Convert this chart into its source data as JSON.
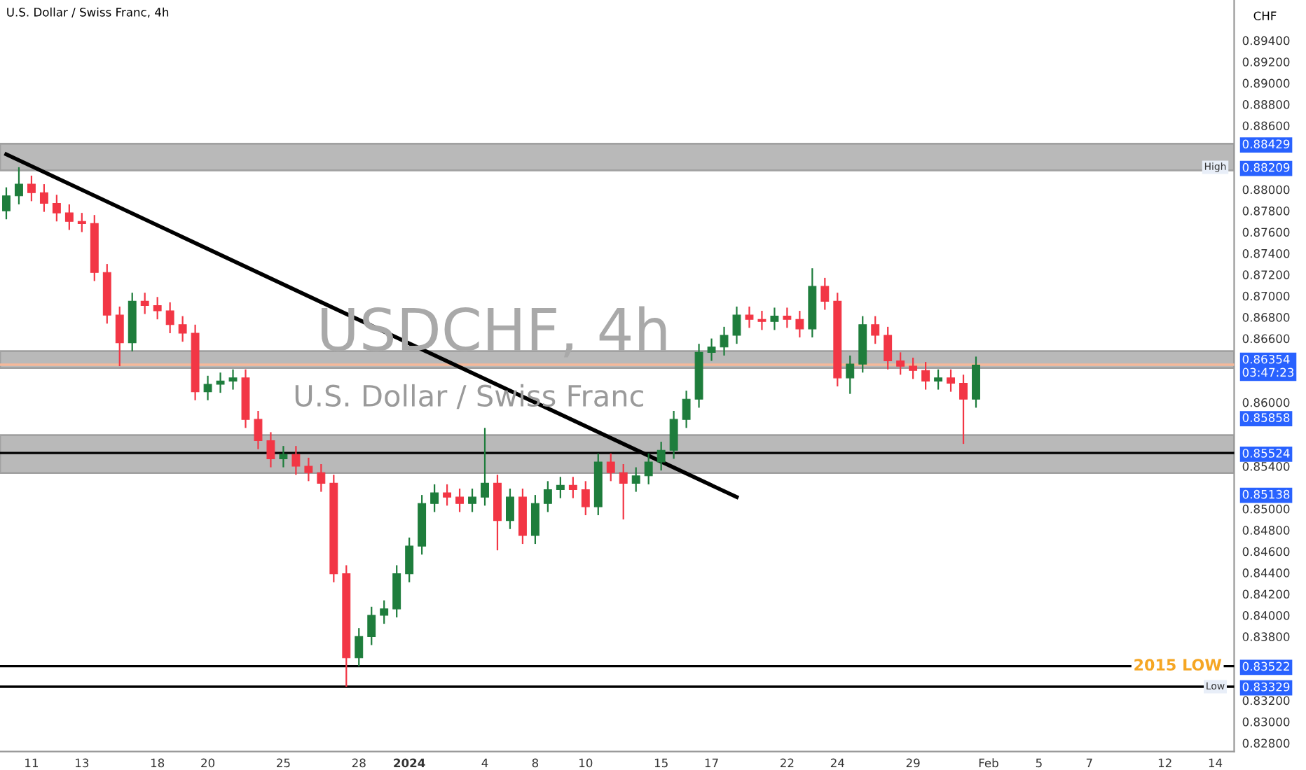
{
  "chart_data": {
    "type": "candlestick",
    "title": "U.S. Dollar / Swiss Franc, 4h",
    "ylabel": "CHF",
    "categories": [
      null,
      null,
      "11",
      null,
      null,
      null,
      "13",
      null,
      null,
      null,
      null,
      null,
      "18",
      null,
      null,
      null,
      "20",
      null,
      null,
      null,
      null,
      null,
      "25",
      null,
      null,
      null,
      null,
      null,
      "28",
      null,
      null,
      null,
      "2024",
      null,
      null,
      null,
      null,
      null,
      "4",
      null,
      null,
      null,
      "8",
      null,
      null,
      null,
      "10",
      null,
      null,
      null,
      null,
      null,
      "15",
      null,
      null,
      null,
      "17",
      null,
      null,
      null,
      null,
      null,
      "22",
      null,
      null,
      null,
      "24",
      null,
      null,
      null,
      null,
      null,
      "29",
      null,
      null,
      null,
      null,
      null,
      "Feb",
      null,
      null,
      null,
      "5",
      null,
      null,
      null,
      "7",
      null,
      null,
      null,
      null,
      null,
      "12",
      null,
      null,
      null,
      "14",
      null
    ],
    "ohlc": [
      [
        0.878,
        0.8802,
        0.8772,
        0.8794
      ],
      [
        0.8794,
        0.88209,
        0.8786,
        0.8805
      ],
      [
        0.8805,
        0.8813,
        0.8789,
        0.8797
      ],
      [
        0.8797,
        0.8805,
        0.8779,
        0.8787
      ],
      [
        0.8787,
        0.8795,
        0.877,
        0.8778
      ],
      [
        0.8778,
        0.8786,
        0.8762,
        0.877
      ],
      [
        0.877,
        0.8778,
        0.876,
        0.8768
      ],
      [
        0.8768,
        0.8776,
        0.8714,
        0.8722
      ],
      [
        0.8722,
        0.873,
        0.8674,
        0.8682
      ],
      [
        0.8682,
        0.869,
        0.8634,
        0.8656
      ],
      [
        0.8656,
        0.8703,
        0.8648,
        0.8695
      ],
      [
        0.8695,
        0.8703,
        0.8683,
        0.8691
      ],
      [
        0.8691,
        0.8699,
        0.8678,
        0.8686
      ],
      [
        0.8686,
        0.8694,
        0.8665,
        0.8673
      ],
      [
        0.8673,
        0.8681,
        0.8657,
        0.8665
      ],
      [
        0.8665,
        0.8673,
        0.8602,
        0.861
      ],
      [
        0.861,
        0.8625,
        0.8602,
        0.8617
      ],
      [
        0.8617,
        0.8628,
        0.8609,
        0.862
      ],
      [
        0.862,
        0.8631,
        0.8612,
        0.8623
      ],
      [
        0.8623,
        0.8631,
        0.8576,
        0.8584
      ],
      [
        0.8584,
        0.8592,
        0.8556,
        0.8564
      ],
      [
        0.8564,
        0.8572,
        0.8539,
        0.8547
      ],
      [
        0.8547,
        0.8559,
        0.8539,
        0.8551
      ],
      [
        0.8551,
        0.8559,
        0.8532,
        0.854
      ],
      [
        0.854,
        0.8548,
        0.8526,
        0.8534
      ],
      [
        0.8534,
        0.8542,
        0.8516,
        0.8524
      ],
      [
        0.8524,
        0.8532,
        0.8431,
        0.8439
      ],
      [
        0.8439,
        0.8447,
        0.83329,
        0.836
      ],
      [
        0.836,
        0.8388,
        0.8352,
        0.838
      ],
      [
        0.838,
        0.8408,
        0.8372,
        0.84
      ],
      [
        0.84,
        0.8414,
        0.8392,
        0.8406
      ],
      [
        0.8406,
        0.8447,
        0.8398,
        0.8439
      ],
      [
        0.8439,
        0.8473,
        0.8431,
        0.8465
      ],
      [
        0.8465,
        0.8513,
        0.8457,
        0.8505
      ],
      [
        0.8505,
        0.8523,
        0.8497,
        0.8515
      ],
      [
        0.8515,
        0.8523,
        0.8503,
        0.8511
      ],
      [
        0.8511,
        0.8519,
        0.8497,
        0.8505
      ],
      [
        0.8505,
        0.8519,
        0.8497,
        0.8511
      ],
      [
        0.8511,
        0.8576,
        0.8503,
        0.8524
      ],
      [
        0.8524,
        0.8532,
        0.8461,
        0.8489
      ],
      [
        0.8489,
        0.8519,
        0.8481,
        0.8511
      ],
      [
        0.8511,
        0.8519,
        0.8467,
        0.8475
      ],
      [
        0.8475,
        0.8513,
        0.8467,
        0.8505
      ],
      [
        0.8505,
        0.8526,
        0.8497,
        0.8518
      ],
      [
        0.8518,
        0.853,
        0.851,
        0.8522
      ],
      [
        0.8522,
        0.853,
        0.851,
        0.8518
      ],
      [
        0.8518,
        0.8526,
        0.8494,
        0.8502
      ],
      [
        0.8502,
        0.8552,
        0.8494,
        0.8544
      ],
      [
        0.8544,
        0.8552,
        0.8526,
        0.8534
      ],
      [
        0.8534,
        0.8542,
        0.849,
        0.8524
      ],
      [
        0.8524,
        0.8539,
        0.8516,
        0.8531
      ],
      [
        0.8531,
        0.8552,
        0.8523,
        0.8544
      ],
      [
        0.8544,
        0.8563,
        0.8536,
        0.8555
      ],
      [
        0.8555,
        0.8592,
        0.8547,
        0.8584
      ],
      [
        0.8584,
        0.8611,
        0.8576,
        0.8603
      ],
      [
        0.8603,
        0.8655,
        0.8595,
        0.8647
      ],
      [
        0.8647,
        0.866,
        0.8639,
        0.8652
      ],
      [
        0.8652,
        0.8671,
        0.8644,
        0.8663
      ],
      [
        0.8663,
        0.869,
        0.8655,
        0.8682
      ],
      [
        0.8682,
        0.869,
        0.867,
        0.8678
      ],
      [
        0.8678,
        0.8686,
        0.8668,
        0.8676
      ],
      [
        0.8676,
        0.8689,
        0.8668,
        0.8681
      ],
      [
        0.8681,
        0.8689,
        0.867,
        0.8678
      ],
      [
        0.8678,
        0.8686,
        0.8661,
        0.8669
      ],
      [
        0.8669,
        0.8726,
        0.8661,
        0.8709
      ],
      [
        0.8709,
        0.8717,
        0.8687,
        0.8695
      ],
      [
        0.8695,
        0.8703,
        0.8615,
        0.8623
      ],
      [
        0.8623,
        0.8644,
        0.8608,
        0.8636
      ],
      [
        0.8636,
        0.8681,
        0.8628,
        0.8673
      ],
      [
        0.8673,
        0.8681,
        0.8655,
        0.8663
      ],
      [
        0.8663,
        0.8671,
        0.8631,
        0.8639
      ],
      [
        0.8639,
        0.8647,
        0.8626,
        0.8634
      ],
      [
        0.8634,
        0.8642,
        0.8622,
        0.863
      ],
      [
        0.863,
        0.8638,
        0.8612,
        0.862
      ],
      [
        0.862,
        0.8631,
        0.8612,
        0.8623
      ],
      [
        0.8623,
        0.8631,
        0.861,
        0.8618
      ],
      [
        0.8618,
        0.8626,
        0.8561,
        0.8603
      ],
      [
        0.8603,
        0.8643,
        0.8595,
        0.8635
      ],
      null,
      null,
      null,
      null,
      null,
      null,
      null,
      null,
      null,
      null,
      null,
      null,
      null,
      null,
      null,
      null,
      null,
      null,
      null,
      null
    ],
    "series": [
      {
        "type": "line",
        "color": "#000000",
        "values": [
          0.8833,
          null,
          null,
          null,
          null,
          null,
          null,
          null,
          null,
          null,
          null,
          null,
          null,
          null,
          null,
          null,
          null,
          null,
          null,
          null,
          null,
          null,
          null,
          null,
          null,
          null,
          null,
          null,
          null,
          null,
          null,
          null,
          null,
          null,
          null,
          null,
          null,
          null,
          null,
          null,
          null,
          null,
          null,
          null,
          null,
          null,
          null,
          null,
          null,
          null,
          null,
          null,
          null,
          null,
          null,
          null,
          null,
          null,
          0.8511,
          null,
          null,
          null,
          null,
          null,
          null,
          null,
          null,
          null,
          null,
          null,
          null,
          null,
          null,
          null,
          null,
          null,
          null,
          null,
          null,
          null,
          null,
          null,
          null,
          null,
          null,
          null,
          null,
          null,
          null,
          null,
          null,
          null,
          null,
          null,
          null,
          null,
          null,
          null
        ]
      }
    ],
    "ylim": [
      0.8272,
      0.8978
    ],
    "yticks": [
      {
        "value": 0.828,
        "label": "0.82800"
      },
      {
        "value": 0.83,
        "label": "0.83000"
      },
      {
        "value": 0.832,
        "label": "0.83200"
      },
      {
        "value": 0.83329,
        "label": "0.83329"
      },
      {
        "value": 0.83522,
        "label": "0.83522"
      },
      {
        "value": 0.838,
        "label": "0.83800"
      },
      {
        "value": 0.84,
        "label": "0.84000"
      },
      {
        "value": 0.842,
        "label": "0.84200"
      },
      {
        "value": 0.844,
        "label": "0.84400"
      },
      {
        "value": 0.846,
        "label": "0.84600"
      },
      {
        "value": 0.848,
        "label": "0.84800"
      },
      {
        "value": 0.85,
        "label": "0.85000"
      },
      {
        "value": 0.85138,
        "label": "0.85138"
      },
      {
        "value": 0.854,
        "label": "0.85400"
      },
      {
        "value": 0.85524,
        "label": "0.85524"
      },
      {
        "value": 0.85858,
        "label": "0.85858"
      },
      {
        "value": 0.86,
        "label": "0.86000"
      },
      {
        "value": 0.86354,
        "label": "0.86354\n03:47:23"
      },
      {
        "value": 0.866,
        "label": "0.86600"
      },
      {
        "value": 0.868,
        "label": "0.86800"
      },
      {
        "value": 0.87,
        "label": "0.87000"
      },
      {
        "value": 0.872,
        "label": "0.87200"
      },
      {
        "value": 0.874,
        "label": "0.87400"
      },
      {
        "value": 0.876,
        "label": "0.87600"
      },
      {
        "value": 0.878,
        "label": "0.87800"
      },
      {
        "value": 0.88,
        "label": "0.88000"
      },
      {
        "value": 0.88209,
        "label": "0.88209"
      },
      {
        "value": 0.88429,
        "label": "0.88429"
      },
      {
        "value": 0.886,
        "label": "0.88600"
      },
      {
        "value": 0.888,
        "label": "0.88800"
      },
      {
        "value": 0.89,
        "label": "0.89000"
      },
      {
        "value": 0.892,
        "label": "0.89200"
      },
      {
        "value": 0.894,
        "label": "0.89400"
      }
    ],
    "bands": [
      {
        "axis": "y",
        "from": 0.8818,
        "to": 0.8843,
        "color": "#808080"
      },
      {
        "axis": "y",
        "from": 0.86323,
        "to": 0.86481,
        "color": "#808080"
      },
      {
        "axis": "y",
        "from": 0.85337,
        "to": 0.85692,
        "color": "#808080"
      }
    ],
    "ref_lines": [
      {
        "axis": "y",
        "value": 0.85524,
        "color": "#000000"
      },
      {
        "axis": "y",
        "value": 0.83522,
        "label": "2015 LOW",
        "color": "#000000"
      },
      {
        "axis": "y",
        "value": 0.83329,
        "color": "#000000"
      },
      {
        "axis": "y",
        "value": 0.86354,
        "color": "#f5b89a"
      }
    ],
    "annotations": [
      "USDCHF, 4h",
      "U.S. Dollar / Swiss Franc",
      {
        "text": "High",
        "x": "14",
        "y": 0.88209
      },
      {
        "text": "Low",
        "x": "14",
        "y": 0.83329
      }
    ],
    "grid": false,
    "legend": false
  }
}
